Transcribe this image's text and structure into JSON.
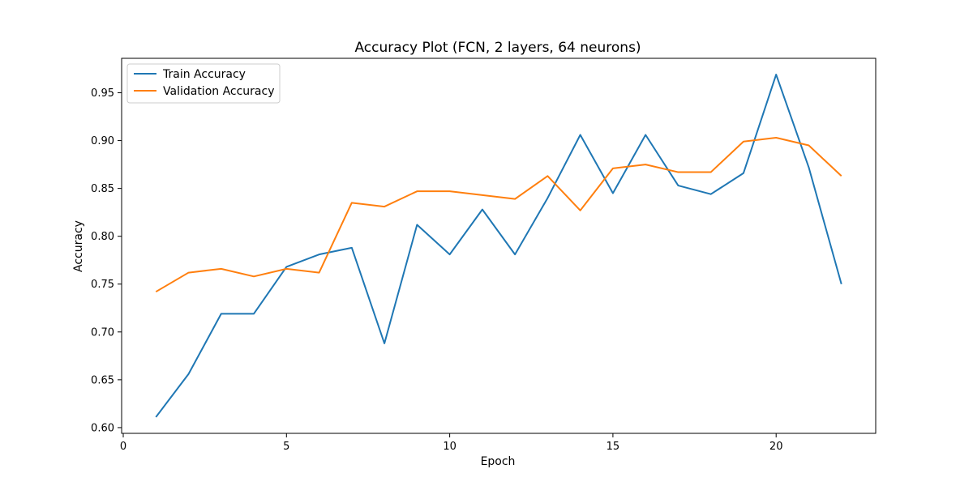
{
  "chart_data": {
    "type": "line",
    "title": "Accuracy Plot (FCN, 2 layers, 64 neurons)",
    "xlabel": "Epoch",
    "ylabel": "Accuracy",
    "xlim": [
      -0.05,
      23.05
    ],
    "ylim": [
      0.594,
      0.986
    ],
    "xticks": [
      0,
      5,
      10,
      15,
      20
    ],
    "yticks": [
      0.6,
      0.65,
      0.7,
      0.75,
      0.8,
      0.85,
      0.9,
      0.95
    ],
    "grid": false,
    "legend_position": "upper-left",
    "x": [
      1,
      2,
      3,
      4,
      5,
      6,
      7,
      8,
      9,
      10,
      11,
      12,
      13,
      14,
      15,
      16,
      17,
      18,
      19,
      20,
      21,
      22
    ],
    "series": [
      {
        "name": "Train Accuracy",
        "color": "#1f77b4",
        "values": [
          0.611,
          0.656,
          0.719,
          0.719,
          0.768,
          0.781,
          0.788,
          0.688,
          0.812,
          0.781,
          0.828,
          0.781,
          0.84,
          0.906,
          0.845,
          0.906,
          0.853,
          0.844,
          0.866,
          0.969,
          0.872,
          0.75
        ]
      },
      {
        "name": "Validation Accuracy",
        "color": "#ff7f0e",
        "values": [
          0.742,
          0.762,
          0.766,
          0.758,
          0.766,
          0.762,
          0.835,
          0.831,
          0.847,
          0.847,
          0.843,
          0.839,
          0.863,
          0.827,
          0.871,
          0.875,
          0.867,
          0.867,
          0.899,
          0.903,
          0.895,
          0.863
        ]
      }
    ]
  }
}
